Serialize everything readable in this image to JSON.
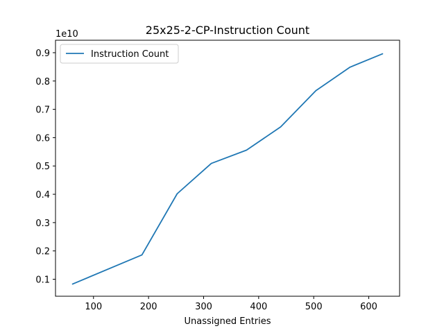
{
  "chart_data": {
    "type": "line",
    "title": "25x25-2-CP-Instruction Count",
    "xlabel": "Unassigned Entries",
    "ylabel": "",
    "y_offset_label": "1e10",
    "y_scale": 10000000000,
    "xlim": [
      31,
      656
    ],
    "ylim": [
      0.04,
      0.944
    ],
    "x_ticks": [
      100,
      200,
      300,
      400,
      500,
      600
    ],
    "y_ticks": [
      0.1,
      0.2,
      0.3,
      0.4,
      0.5,
      0.6,
      0.7,
      0.8,
      0.9
    ],
    "grid": false,
    "legend_position": "upper-left",
    "series": [
      {
        "name": "Instruction Count",
        "color": "#1f77b4",
        "x": [
          62,
          188,
          252,
          314,
          378,
          440,
          504,
          566,
          625
        ],
        "y": [
          0.083,
          0.186,
          0.402,
          0.509,
          0.556,
          0.638,
          0.766,
          0.849,
          0.896
        ]
      }
    ]
  }
}
